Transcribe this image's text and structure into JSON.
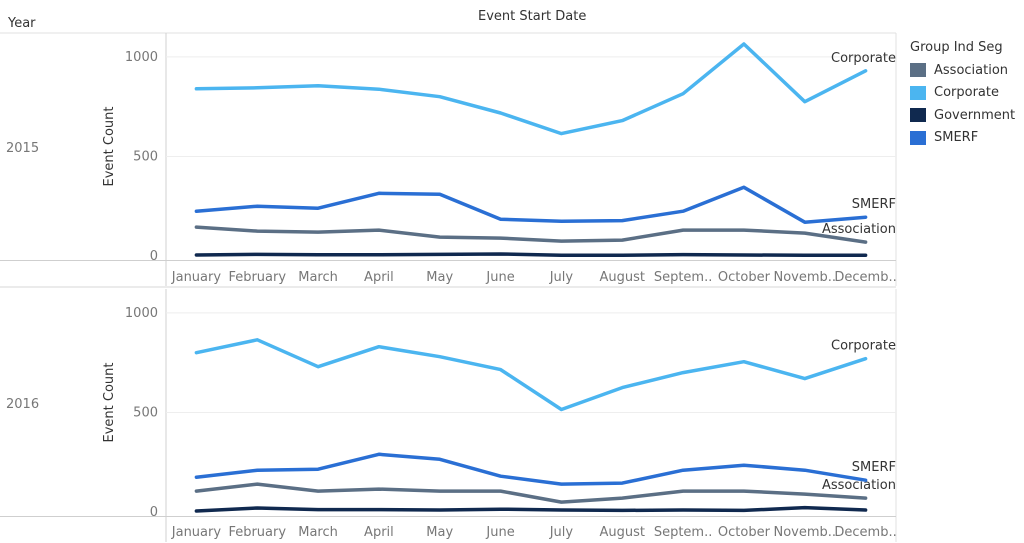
{
  "header": {
    "row_field": "Year",
    "column_title": "Event Start Date"
  },
  "legend": {
    "title": "Group Ind Seg",
    "items": [
      {
        "name": "Association",
        "color": "#5b6f85"
      },
      {
        "name": "Corporate",
        "color": "#4bb5f0"
      },
      {
        "name": "Government",
        "color": "#10294f"
      },
      {
        "name": "SMERF",
        "color": "#2a6fd4"
      }
    ]
  },
  "chart_data": [
    {
      "type": "line",
      "panel": "2015",
      "title": "",
      "xlabel": "",
      "ylabel": "Event Count",
      "ylim": [
        -20,
        1120
      ],
      "y_ticks": [
        0,
        500,
        1000
      ],
      "categories": [
        "January",
        "February",
        "March",
        "April",
        "May",
        "June",
        "July",
        "August",
        "Septem..",
        "October",
        "Novemb..",
        "Decemb.."
      ],
      "series": [
        {
          "name": "Corporate",
          "color": "#4bb5f0",
          "end_label": "Corporate",
          "values": [
            840,
            845,
            855,
            838,
            800,
            718,
            615,
            680,
            815,
            1065,
            775,
            930
          ]
        },
        {
          "name": "SMERF",
          "color": "#2a6fd4",
          "end_label": "SMERF",
          "values": [
            225,
            250,
            240,
            315,
            310,
            185,
            175,
            178,
            225,
            345,
            170,
            195
          ]
        },
        {
          "name": "Association",
          "color": "#5b6f85",
          "end_label": "Association",
          "values": [
            145,
            125,
            120,
            130,
            95,
            90,
            75,
            80,
            130,
            130,
            115,
            70
          ]
        },
        {
          "name": "Government",
          "color": "#10294f",
          "end_label": "",
          "values": [
            5,
            8,
            6,
            6,
            8,
            10,
            4,
            4,
            7,
            5,
            4,
            4
          ]
        }
      ]
    },
    {
      "type": "line",
      "panel": "2016",
      "title": "",
      "xlabel": "",
      "ylabel": "Event Count",
      "ylim": [
        -20,
        1120
      ],
      "y_ticks": [
        0,
        500,
        1000
      ],
      "categories": [
        "January",
        "February",
        "March",
        "April",
        "May",
        "June",
        "July",
        "August",
        "Septem..",
        "October",
        "Novemb..",
        "Decemb.."
      ],
      "series": [
        {
          "name": "Corporate",
          "color": "#4bb5f0",
          "end_label": "Corporate",
          "values": [
            800,
            865,
            730,
            830,
            780,
            715,
            515,
            625,
            700,
            755,
            670,
            770
          ]
        },
        {
          "name": "SMERF",
          "color": "#2a6fd4",
          "end_label": "SMERF",
          "values": [
            175,
            210,
            215,
            290,
            265,
            180,
            140,
            145,
            210,
            235,
            210,
            160
          ]
        },
        {
          "name": "Association",
          "color": "#5b6f85",
          "end_label": "Association",
          "values": [
            105,
            140,
            105,
            115,
            105,
            105,
            50,
            70,
            105,
            105,
            90,
            70
          ]
        },
        {
          "name": "Government",
          "color": "#10294f",
          "end_label": "",
          "values": [
            5,
            20,
            12,
            12,
            10,
            14,
            10,
            8,
            10,
            8,
            22,
            10
          ]
        }
      ]
    }
  ]
}
